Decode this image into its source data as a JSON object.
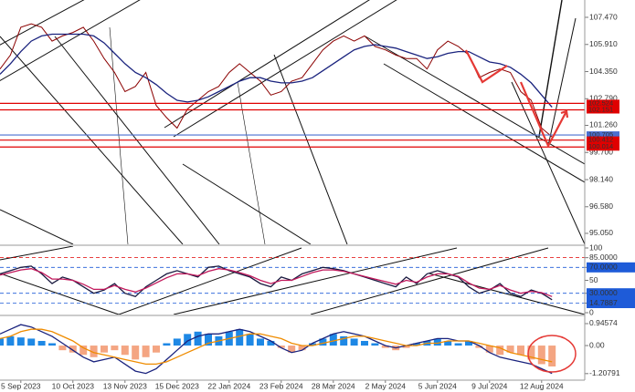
{
  "chart_data": [
    {
      "type": "line",
      "categories": [
        null,
        null,
        "5 Sep 2023",
        null,
        null,
        null,
        null,
        "10 Oct 2023",
        null,
        null,
        null,
        null,
        "13 Nov 2023",
        null,
        null,
        null,
        null,
        "15 Dec 2023",
        null,
        null,
        null,
        null,
        "22 Jan 2024",
        null,
        null,
        null,
        null,
        "23 Feb 2024",
        null,
        null,
        null,
        null,
        "28 Mar 2024",
        null,
        null,
        null,
        null,
        "2 May 2024",
        null,
        null,
        null,
        null,
        "5 Jun 2024",
        null,
        null,
        null,
        null,
        "9 Jul 2024",
        null,
        null,
        null,
        null,
        "12 Aug 2024",
        null
      ],
      "series": [
        {
          "color": "#8b0000",
          "values": [
            104.5,
            105.3,
            106.9,
            107.1,
            106.9,
            106.1,
            106.4,
            106.6,
            106.9,
            106.1,
            105.1,
            104.3,
            103.2,
            103.5,
            104.3,
            102.4,
            101.7,
            101.1,
            102.2,
            102.7,
            103.2,
            103.5,
            104.3,
            104.8,
            104.3,
            103.8,
            103.0,
            103.2,
            103.8,
            104.0,
            104.8,
            105.6,
            106.1,
            106.4,
            106.1,
            106.4,
            105.8,
            105.6,
            105.3,
            105.1,
            105.1,
            104.5,
            105.6,
            106.1,
            105.8,
            105.3,
            104.0,
            104.3,
            104.5,
            104.3,
            103.2,
            102.7,
            101.1,
            100.6
          ]
        },
        {
          "color": "#1a237e",
          "values": [
            104.2,
            104.8,
            105.5,
            106.1,
            106.4,
            106.5,
            106.5,
            106.5,
            106.5,
            106.4,
            106.0,
            105.4,
            104.8,
            104.3,
            104.0,
            103.6,
            103.1,
            102.7,
            102.6,
            102.7,
            102.9,
            103.2,
            103.5,
            103.8,
            104.0,
            104.0,
            103.8,
            103.7,
            103.7,
            103.8,
            104.0,
            104.4,
            104.8,
            105.2,
            105.6,
            105.8,
            105.9,
            105.8,
            105.7,
            105.5,
            105.3,
            105.1,
            105.2,
            105.4,
            105.5,
            105.5,
            105.2,
            104.9,
            104.8,
            104.6,
            104.2,
            103.7,
            103.0,
            102.3
          ]
        }
      ],
      "ylim": [
        94.42,
        108.466
      ],
      "yticks": [
        {
          "value": 107.47,
          "label": "107.470"
        },
        {
          "value": 105.91,
          "label": "105.910"
        },
        {
          "value": 104.35,
          "label": "104.350"
        },
        {
          "value": 102.79,
          "label": "102.790"
        },
        {
          "value": 101.26,
          "label": "101.260"
        },
        {
          "value": 99.7,
          "label": "99.700"
        },
        {
          "value": 98.14,
          "label": "98.140"
        },
        {
          "value": 96.58,
          "label": "96.580"
        },
        {
          "value": 95.05,
          "label": "95.050"
        }
      ],
      "levels": [
        {
          "value": 102.524,
          "color": "#e00000"
        },
        {
          "value": 102.151,
          "color": "#e00000"
        },
        {
          "value": 100.705,
          "color": "#4a6fd0"
        },
        {
          "value": 100.412,
          "color": "#e00000"
        },
        {
          "value": 100.014,
          "color": "#e00000"
        }
      ]
    },
    {
      "type": "line",
      "series": [
        {
          "color": "#1a1a40",
          "values": [
            60,
            65,
            70,
            72,
            60,
            45,
            55,
            50,
            40,
            30,
            35,
            45,
            30,
            25,
            40,
            50,
            60,
            65,
            60,
            55,
            70,
            72,
            65,
            60,
            55,
            45,
            40,
            55,
            50,
            60,
            65,
            70,
            68,
            65,
            60,
            55,
            50,
            45,
            40,
            55,
            45,
            60,
            65,
            60,
            55,
            40,
            30,
            35,
            45,
            30,
            25,
            35,
            30,
            20
          ]
        },
        {
          "color": "#c2185b",
          "values": [
            58,
            62,
            66,
            68,
            62,
            52,
            52,
            50,
            44,
            36,
            36,
            42,
            36,
            32,
            38,
            46,
            54,
            60,
            60,
            57,
            64,
            68,
            66,
            62,
            57,
            50,
            45,
            50,
            50,
            56,
            62,
            66,
            66,
            64,
            60,
            56,
            52,
            48,
            44,
            50,
            47,
            55,
            60,
            60,
            56,
            46,
            38,
            36,
            42,
            35,
            30,
            33,
            31,
            25
          ]
        }
      ],
      "ylim": [
        0,
        100
      ],
      "yticks": [
        100,
        {
          "value": 85,
          "label": "85.0000"
        },
        {
          "value": 70,
          "label": "70.0000"
        },
        50,
        {
          "value": 30,
          "label": "30.0000"
        },
        14.7887,
        0
      ],
      "tick_colors": [
        null,
        "#e00000",
        "#1e5bd8",
        null,
        "#1e5bd8",
        "#1e5bd8",
        null
      ]
    },
    {
      "type": "bar",
      "values": [
        0.3,
        0.4,
        0.35,
        0.3,
        0.2,
        0.1,
        -0.2,
        -0.3,
        -0.4,
        -0.5,
        -0.3,
        -0.2,
        -0.4,
        -0.6,
        -0.5,
        -0.3,
        0.1,
        0.3,
        0.5,
        0.6,
        0.5,
        0.4,
        0.6,
        0.7,
        0.5,
        0.3,
        0.2,
        -0.1,
        -0.3,
        -0.2,
        0.1,
        0.3,
        0.5,
        0.4,
        0.3,
        0.2,
        0.1,
        -0.1,
        -0.2,
        -0.1,
        0.1,
        0.2,
        0.3,
        0.2,
        0.1,
        0.2,
        -0.1,
        -0.3,
        -0.4,
        -0.3,
        -0.4,
        -0.6,
        -0.8,
        -0.9
      ],
      "bar_colors": [
        "#1e88e5",
        "#f4a582"
      ],
      "series": [
        {
          "color": "#1a237e",
          "values": [
            0.5,
            0.7,
            0.9,
            0.8,
            0.6,
            0.4,
            0.1,
            -0.2,
            -0.5,
            -0.7,
            -0.6,
            -0.5,
            -0.8,
            -1.1,
            -1.2,
            -1.0,
            -0.6,
            -0.2,
            0.2,
            0.4,
            0.5,
            0.5,
            0.6,
            0.7,
            0.6,
            0.4,
            0.2,
            -0.1,
            -0.3,
            -0.2,
            0.1,
            0.3,
            0.5,
            0.6,
            0.5,
            0.4,
            0.2,
            0.0,
            -0.1,
            0.0,
            0.1,
            0.2,
            0.3,
            0.3,
            0.2,
            0.2,
            0.0,
            -0.3,
            -0.5,
            -0.6,
            -0.7,
            -0.8,
            -1.0,
            -1.2
          ]
        },
        {
          "color": "#ef8c00",
          "values": [
            0.3,
            0.4,
            0.6,
            0.7,
            0.7,
            0.6,
            0.4,
            0.2,
            -0.1,
            -0.3,
            -0.4,
            -0.5,
            -0.6,
            -0.7,
            -0.8,
            -0.8,
            -0.7,
            -0.5,
            -0.3,
            -0.1,
            0.1,
            0.2,
            0.3,
            0.4,
            0.5,
            0.5,
            0.4,
            0.3,
            0.1,
            0.0,
            0.0,
            0.1,
            0.2,
            0.3,
            0.4,
            0.4,
            0.3,
            0.2,
            0.1,
            0.0,
            0.0,
            0.1,
            0.1,
            0.2,
            0.2,
            0.2,
            0.1,
            0.0,
            -0.1,
            -0.3,
            -0.4,
            -0.5,
            -0.6,
            -0.7
          ]
        }
      ],
      "ylim": [
        -1.45,
        1.22
      ],
      "yticks": [
        {
          "value": 0.94574,
          "label": "0.94574"
        },
        {
          "value": 0,
          "label": "0.00"
        },
        {
          "value": -1.20791,
          "label": "-1.20791"
        }
      ]
    }
  ]
}
